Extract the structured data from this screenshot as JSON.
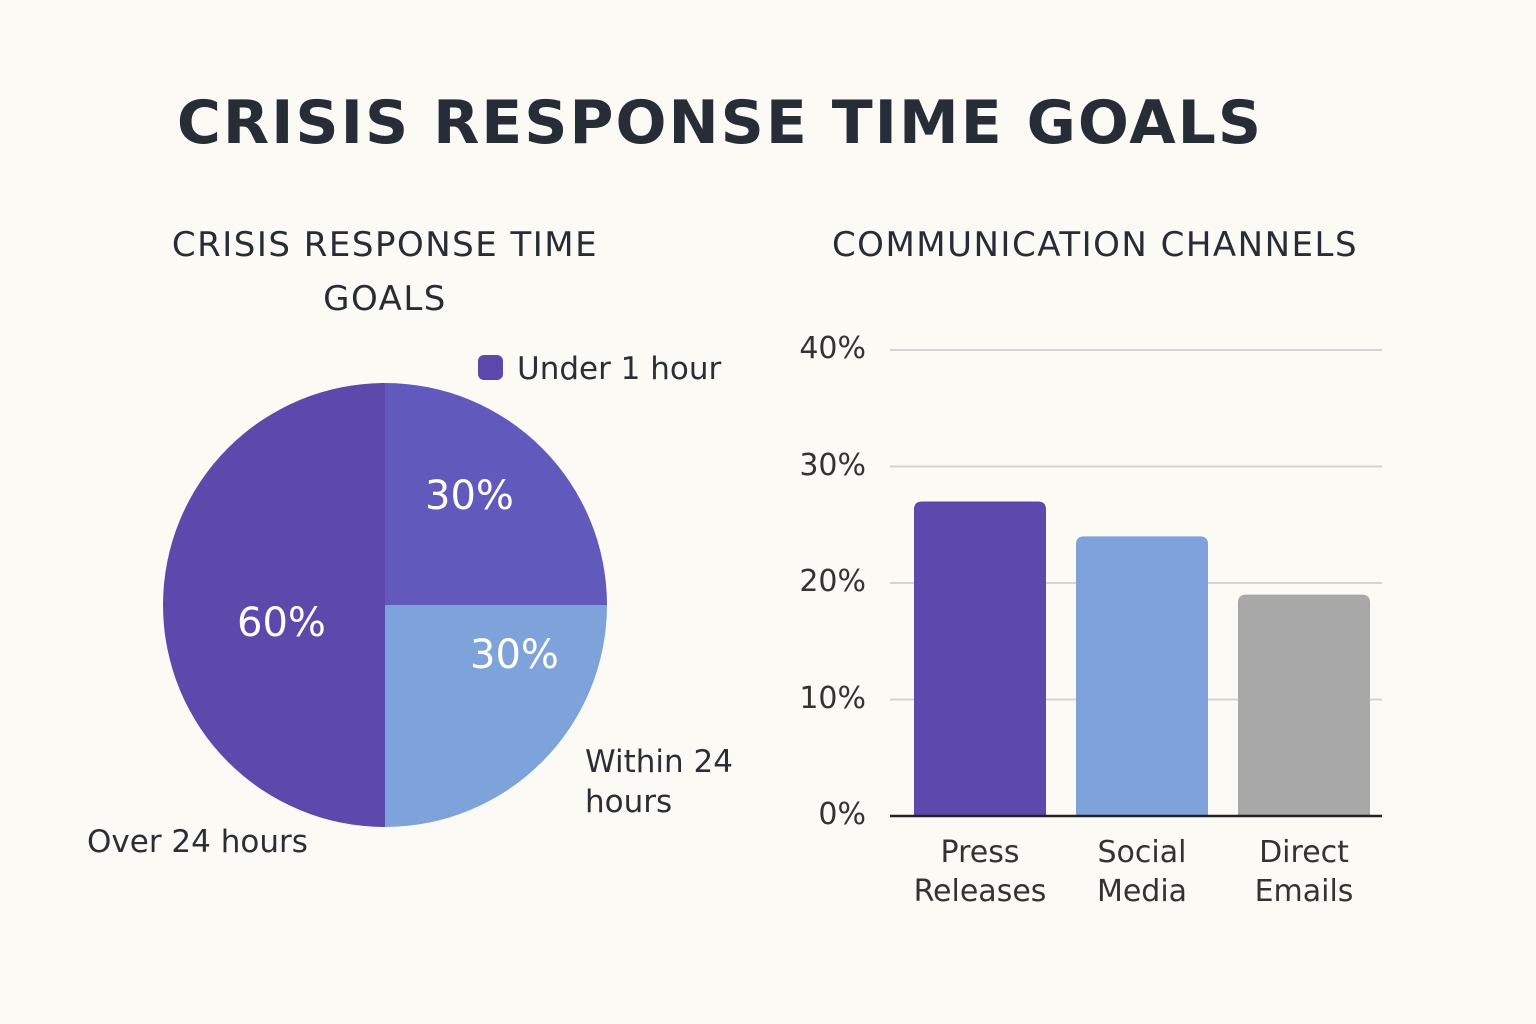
{
  "title": "CRISIS RESPONSE TIME GOALS",
  "chart_data": [
    {
      "type": "pie",
      "title": "CRISIS RESPONSE TIME GOALS",
      "legend": {
        "entries": [
          "Under 1 hour"
        ],
        "position": "top-right"
      },
      "slices": [
        {
          "label": "Under 1 hour",
          "value": 30,
          "value_label": "30%",
          "color": "#6259bd"
        },
        {
          "label": "Within 24 hours",
          "value": 30,
          "value_label": "30%",
          "color": "#7ea3db"
        },
        {
          "label": "Over 24 hours",
          "value": 60,
          "value_label": "60%",
          "color": "#5b4aac"
        }
      ]
    },
    {
      "type": "bar",
      "title": "COMMUNICATION CHANNELS",
      "categories": [
        "Press Releases",
        "Social Media",
        "Direct Emails"
      ],
      "category_lines": [
        [
          "Press",
          "Releases"
        ],
        [
          "Social",
          "Media"
        ],
        [
          "Direct",
          "Emails"
        ]
      ],
      "values": [
        27,
        24,
        19
      ],
      "colors": [
        "#5b4aac",
        "#7ea3db",
        "#a8a8a8"
      ],
      "ylim": [
        0,
        40
      ],
      "yticks": [
        "0%",
        "10%",
        "20%",
        "30%",
        "40%"
      ],
      "grid": true,
      "xlabel": "",
      "ylabel": ""
    }
  ]
}
